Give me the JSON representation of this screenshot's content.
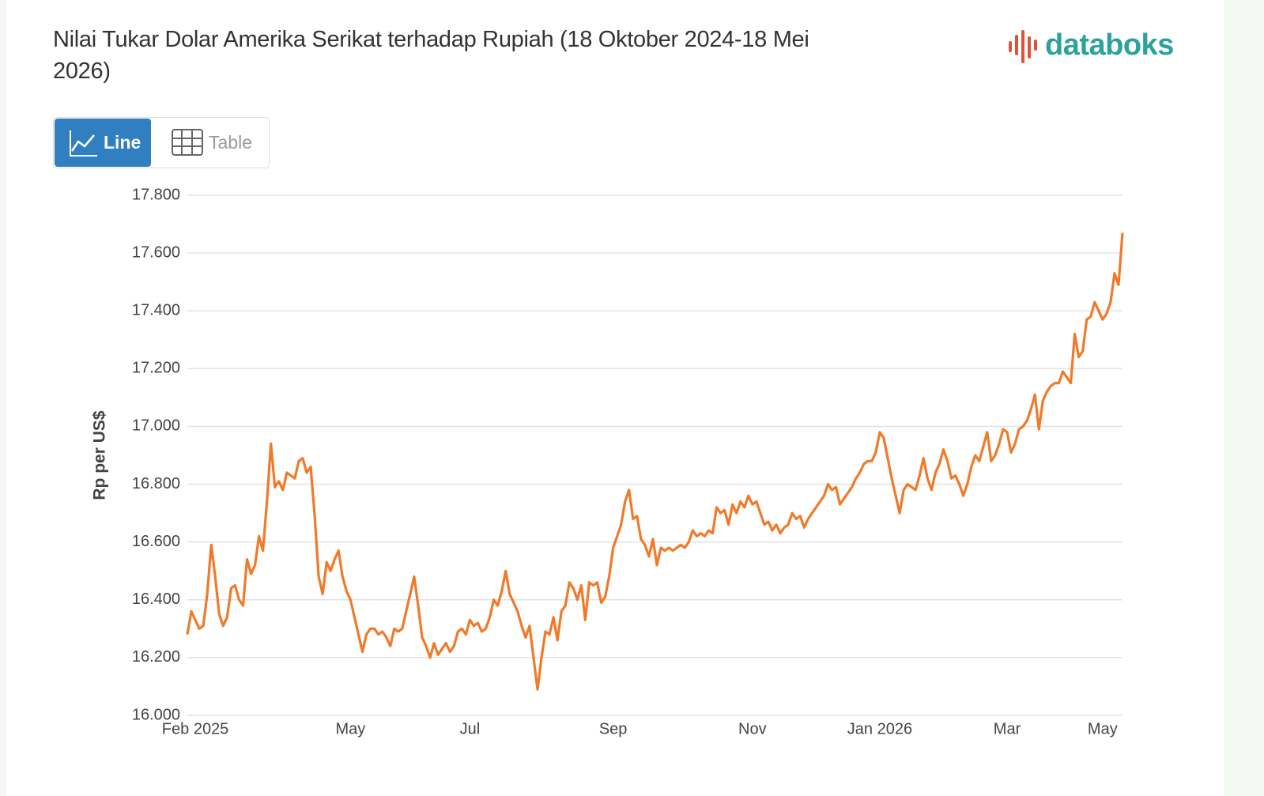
{
  "ui": {
    "logo": "databoks",
    "buttons": [
      "Line",
      "Table"
    ]
  },
  "chart_data": {
    "type": "line",
    "title": "Nilai Tukar Dolar Amerika Serikat terhadap Rupiah (18 Oktober 2024-18 Mei 2026)",
    "y_label": "Rp per US$",
    "grid": true,
    "ylim": [
      16000,
      17800
    ],
    "yticks": [
      {
        "value": 16000,
        "label": "16.000"
      },
      {
        "value": 16200,
        "label": "16.200"
      },
      {
        "value": 16400,
        "label": "16.400"
      },
      {
        "value": 16600,
        "label": "16.600"
      },
      {
        "value": 16800,
        "label": "16.800"
      },
      {
        "value": 17000,
        "label": "17.000"
      },
      {
        "value": 17200,
        "label": "17.200"
      },
      {
        "value": 17400,
        "label": "17.400"
      },
      {
        "value": 17600,
        "label": "17.600"
      },
      {
        "value": 17800,
        "label": "17.800"
      }
    ],
    "categories": [
      null,
      null,
      "Feb 2025",
      null,
      null,
      null,
      null,
      null,
      null,
      null,
      null,
      null,
      null,
      null,
      null,
      null,
      null,
      null,
      null,
      null,
      null,
      null,
      null,
      null,
      null,
      null,
      null,
      null,
      null,
      null,
      null,
      null,
      null,
      null,
      null,
      null,
      null,
      null,
      null,
      null,
      null,
      "May",
      null,
      null,
      null,
      null,
      null,
      null,
      null,
      null,
      null,
      null,
      null,
      null,
      null,
      null,
      null,
      null,
      null,
      null,
      null,
      null,
      null,
      null,
      null,
      null,
      null,
      null,
      null,
      null,
      null,
      "Jul",
      null,
      null,
      null,
      null,
      null,
      null,
      null,
      null,
      null,
      null,
      null,
      null,
      null,
      null,
      null,
      null,
      null,
      null,
      null,
      null,
      null,
      null,
      null,
      null,
      null,
      null,
      null,
      null,
      null,
      null,
      null,
      null,
      null,
      null,
      null,
      "Sep",
      null,
      null,
      null,
      null,
      null,
      null,
      null,
      null,
      null,
      null,
      null,
      null,
      null,
      null,
      null,
      null,
      null,
      null,
      null,
      null,
      null,
      null,
      null,
      null,
      null,
      null,
      null,
      null,
      null,
      null,
      null,
      null,
      null,
      null,
      "Nov",
      null,
      null,
      null,
      null,
      null,
      null,
      null,
      null,
      null,
      null,
      null,
      null,
      null,
      null,
      null,
      null,
      null,
      null,
      null,
      null,
      null,
      null,
      null,
      null,
      null,
      null,
      null,
      null,
      null,
      null,
      null,
      "Jan 2026",
      null,
      null,
      null,
      null,
      null,
      null,
      null,
      null,
      null,
      null,
      null,
      null,
      null,
      null,
      null,
      null,
      null,
      null,
      null,
      null,
      null,
      null,
      null,
      null,
      null,
      null,
      null,
      null,
      null,
      null,
      null,
      "Mar",
      null,
      null,
      null,
      null,
      null,
      null,
      null,
      null,
      null,
      null,
      null,
      null,
      null,
      null,
      null,
      null,
      null,
      null,
      null,
      null,
      null,
      null,
      null,
      "May",
      null,
      null,
      null,
      null,
      null
    ],
    "series": [
      {
        "name": "Rp per US$",
        "color": "#f07a2a",
        "values": [
          16280,
          16360,
          16330,
          16300,
          16310,
          16420,
          16590,
          16480,
          16350,
          16310,
          16340,
          16440,
          16450,
          16400,
          16380,
          16540,
          16490,
          16520,
          16620,
          16570,
          16740,
          16940,
          16790,
          16810,
          16780,
          16840,
          16830,
          16820,
          16880,
          16890,
          16840,
          16860,
          16690,
          16480,
          16420,
          16530,
          16500,
          16540,
          16570,
          16480,
          16430,
          16400,
          16340,
          16280,
          16220,
          16280,
          16300,
          16300,
          16280,
          16290,
          16270,
          16240,
          16300,
          16290,
          16300,
          16360,
          16420,
          16480,
          16380,
          16270,
          16240,
          16200,
          16250,
          16210,
          16230,
          16250,
          16220,
          16240,
          16290,
          16300,
          16280,
          16330,
          16310,
          16320,
          16290,
          16300,
          16340,
          16400,
          16380,
          16430,
          16500,
          16420,
          16390,
          16360,
          16310,
          16270,
          16310,
          16200,
          16090,
          16200,
          16290,
          16280,
          16340,
          16260,
          16360,
          16380,
          16460,
          16440,
          16400,
          16450,
          16330,
          16460,
          16450,
          16460,
          16390,
          16410,
          16480,
          16580,
          16620,
          16660,
          16740,
          16780,
          16680,
          16690,
          16610,
          16590,
          16550,
          16610,
          16520,
          16580,
          16570,
          16580,
          16570,
          16580,
          16590,
          16580,
          16600,
          16640,
          16620,
          16630,
          16620,
          16640,
          16630,
          16720,
          16700,
          16710,
          16660,
          16730,
          16700,
          16740,
          16720,
          16760,
          16730,
          16740,
          16700,
          16660,
          16670,
          16640,
          16660,
          16630,
          16650,
          16660,
          16700,
          16680,
          16690,
          16650,
          16680,
          16700,
          16720,
          16740,
          16760,
          16800,
          16780,
          16790,
          16730,
          16750,
          16770,
          16790,
          16820,
          16840,
          16870,
          16880,
          16880,
          16910,
          16980,
          16960,
          16890,
          16820,
          16760,
          16700,
          16780,
          16800,
          16790,
          16780,
          16830,
          16890,
          16820,
          16780,
          16840,
          16870,
          16920,
          16880,
          16820,
          16830,
          16800,
          16760,
          16800,
          16860,
          16900,
          16880,
          16930,
          16980,
          16880,
          16900,
          16940,
          16990,
          16980,
          16910,
          16940,
          16990,
          17000,
          17020,
          17060,
          17110,
          16990,
          17090,
          17120,
          17140,
          17150,
          17150,
          17190,
          17170,
          17150,
          17320,
          17240,
          17260,
          17370,
          17380,
          17430,
          17400,
          17370,
          17390,
          17430,
          17530,
          17490,
          17670
        ]
      }
    ]
  }
}
